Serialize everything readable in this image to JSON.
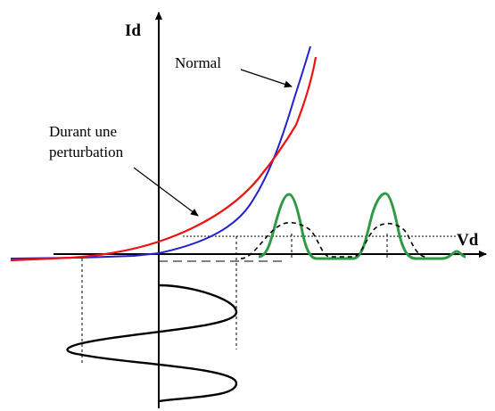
{
  "diagram": {
    "axes": {
      "y_label": "Id",
      "x_label": "Vd"
    },
    "annotations": {
      "normal": "Normal",
      "perturbation_line1": "Durant une",
      "perturbation_line2": "perturbation"
    },
    "colors": {
      "normal_curve": "#2222cc",
      "perturbation_curve": "#ee1111",
      "output_pulses": "#2f9a44",
      "input_signal": "#000000",
      "axes": "#000000"
    }
  }
}
